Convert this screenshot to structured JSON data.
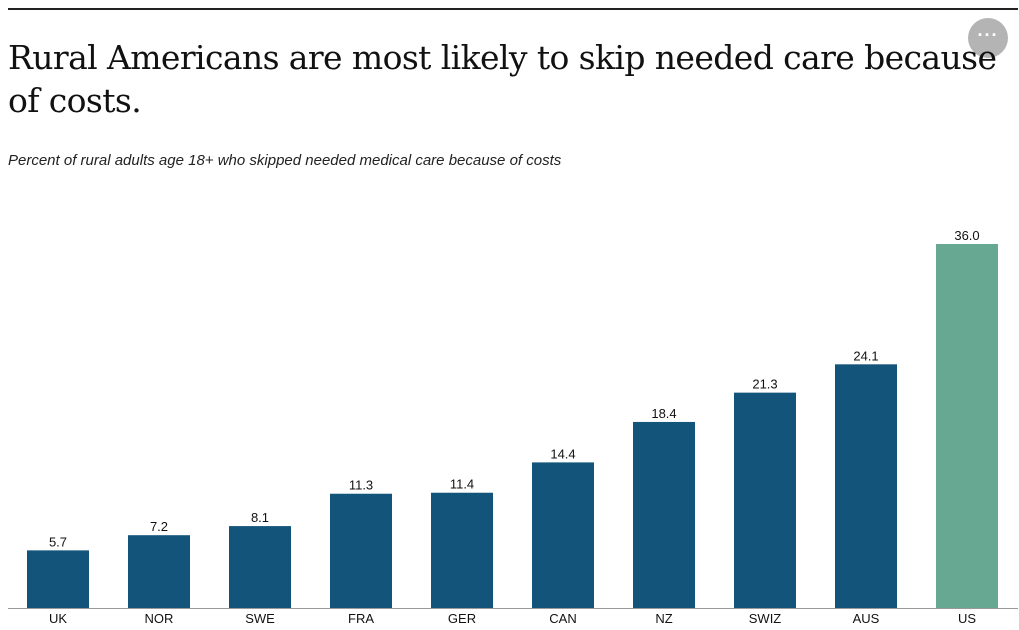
{
  "header": {
    "title": "Rural Americans are most likely to skip needed care because of costs.",
    "subtitle": "Percent of rural adults age 18+ who skipped needed medical care because of costs",
    "menu_dots": "···"
  },
  "colors": {
    "bar_default": "#12547a",
    "bar_highlight": "#66a891",
    "baseline": "#999999",
    "text": "#111111"
  },
  "chart_data": {
    "type": "bar",
    "title": "Rural Americans are most likely to skip needed care because of costs.",
    "subtitle": "Percent of rural adults age 18+ who skipped needed medical care because of costs",
    "categories": [
      "UK",
      "NOR",
      "SWE",
      "FRA",
      "GER",
      "CAN",
      "NZ",
      "SWIZ",
      "AUS",
      "US"
    ],
    "values": [
      5.7,
      7.2,
      8.1,
      11.3,
      11.4,
      14.4,
      18.4,
      21.3,
      24.1,
      36.0
    ],
    "value_labels": [
      "5.7",
      "7.2",
      "8.1",
      "11.3",
      "11.4",
      "14.4",
      "18.4",
      "21.3",
      "24.1",
      "36.0"
    ],
    "highlight": "US",
    "xlabel": "",
    "ylabel": "",
    "ylim": [
      0,
      36.0
    ],
    "grid": false,
    "legend": "none"
  }
}
